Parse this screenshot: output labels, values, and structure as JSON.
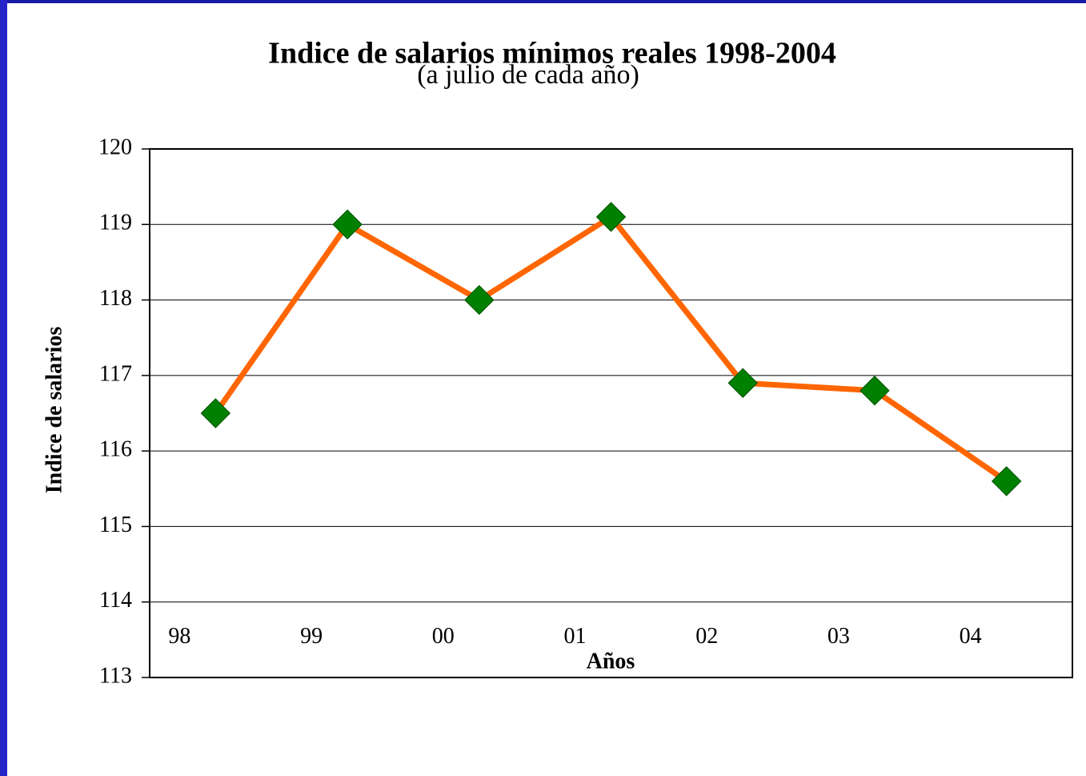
{
  "chart_data": {
    "type": "line",
    "title": "Indice de salarios mínimos reales 1998-2004",
    "subtitle": "(a julio de cada año)",
    "x_label": "Años",
    "y_label": "Indice de salarios",
    "categories": [
      "98",
      "99",
      "00",
      "01",
      "02",
      "03",
      "04"
    ],
    "values": [
      116.5,
      119.0,
      118.0,
      119.1,
      116.9,
      116.8,
      115.6
    ],
    "color": "#ff6600",
    "marker_color": "#008000",
    "ylim": [
      113,
      120
    ],
    "yticks": [
      113,
      114,
      115,
      116,
      117,
      118,
      119,
      120
    ],
    "grid": true
  }
}
